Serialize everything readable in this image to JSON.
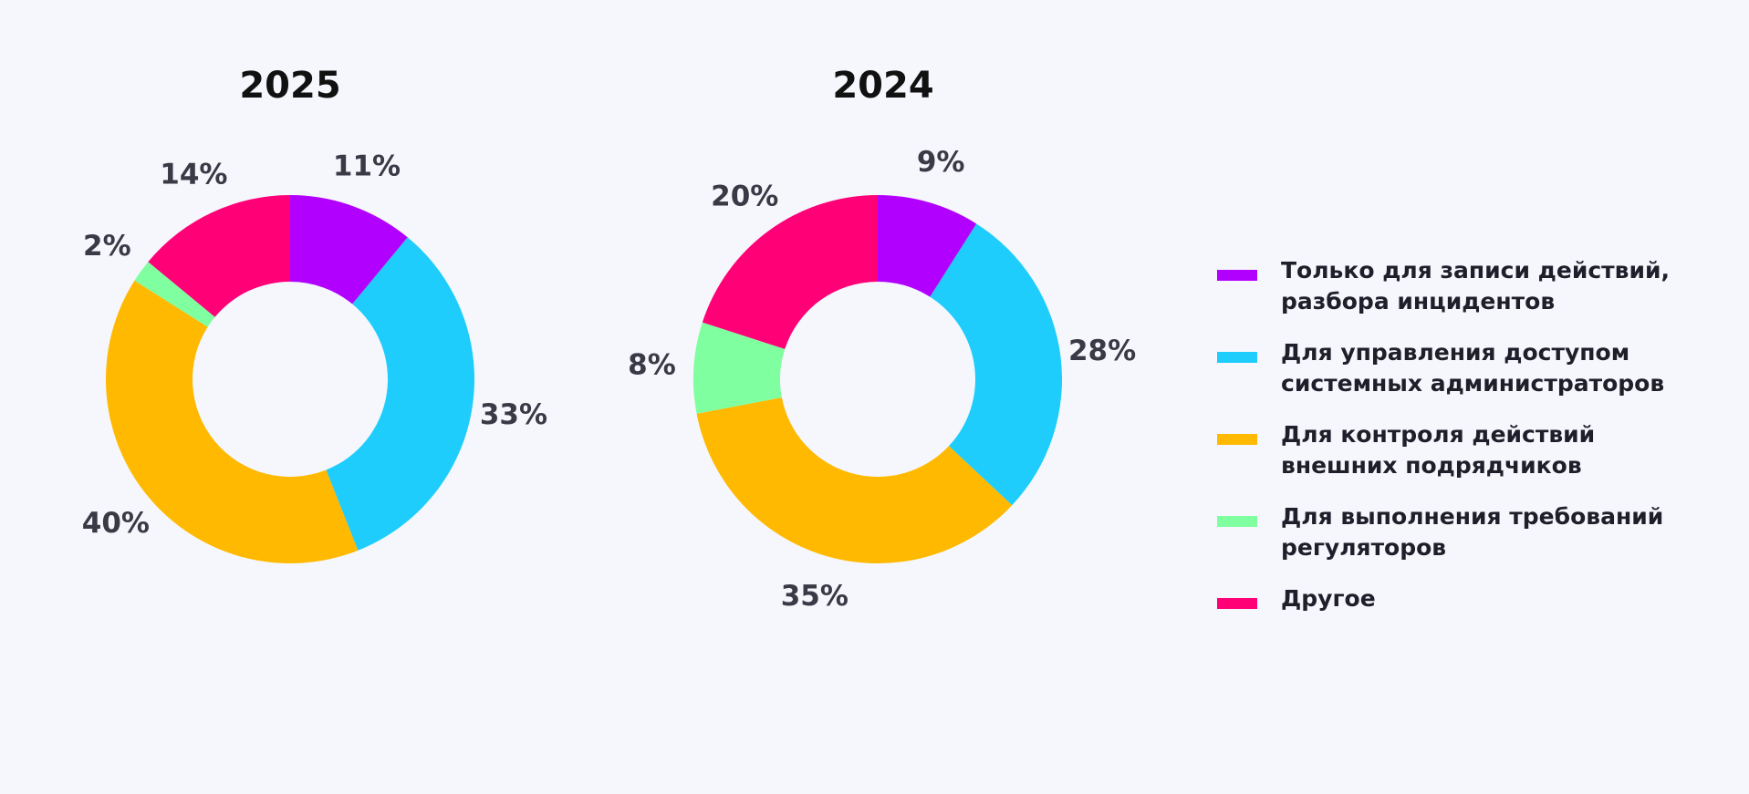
{
  "colors": {
    "background": "#f5f7fc",
    "categories": [
      "#b200ff",
      "#1ecdfc",
      "#ffb900",
      "#80ffa0",
      "#ff0077"
    ]
  },
  "legend": [
    {
      "label": "Только для записи действий,\nразбора инцидентов",
      "color": "#b200ff"
    },
    {
      "label": "Для управления доступом\nсистемных администраторов",
      "color": "#1ecdfc"
    },
    {
      "label": "Для контроля действий\nвнешних подрядчиков",
      "color": "#ffb900"
    },
    {
      "label": "Для выполнения требований\nрегуляторов",
      "color": "#80ffa0"
    },
    {
      "label": "Другое",
      "color": "#ff0077"
    }
  ],
  "chart_data": [
    {
      "type": "pie",
      "donut": true,
      "title": "2025",
      "categories": [
        "Только для записи действий, разбора инцидентов",
        "Для управления доступом системных администраторов",
        "Для контроля действий внешних подрядчиков",
        "Для выполнения требований регуляторов",
        "Другое"
      ],
      "values": [
        11,
        33,
        40,
        2,
        14
      ],
      "labels": [
        "11%",
        "33%",
        "40%",
        "2%",
        "14%"
      ]
    },
    {
      "type": "pie",
      "donut": true,
      "title": "2024",
      "categories": [
        "Только для записи действий, разбора инцидентов",
        "Для управления доступом системных администраторов",
        "Для контроля действий внешних подрядчиков",
        "Для выполнения требований регуляторов",
        "Другое"
      ],
      "values": [
        9,
        28,
        35,
        8,
        20
      ],
      "labels": [
        "9%",
        "28%",
        "35%",
        "8%",
        "20%"
      ]
    }
  ]
}
